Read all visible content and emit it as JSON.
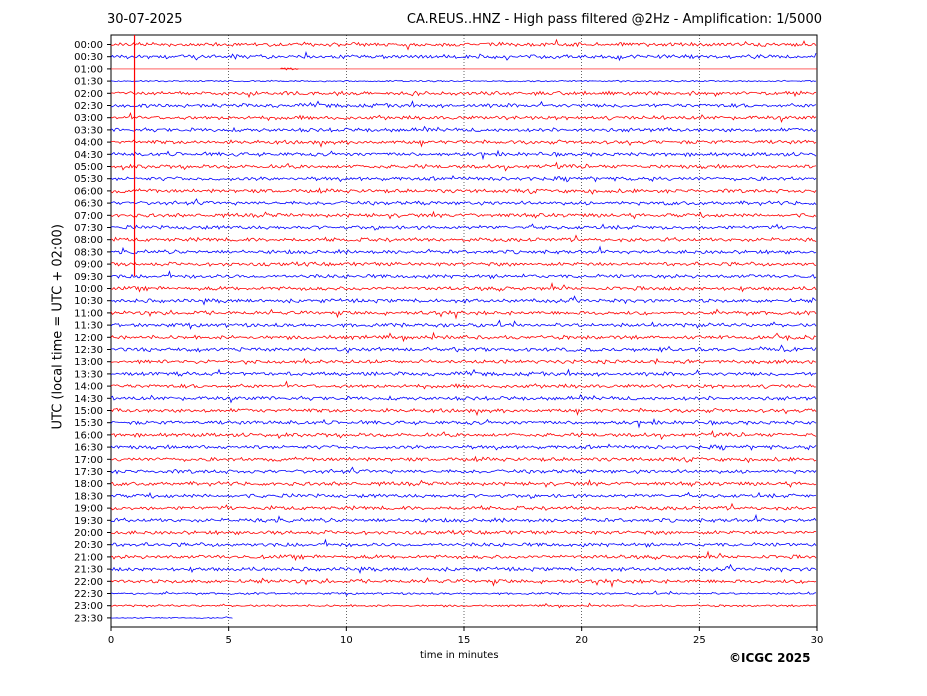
{
  "header": {
    "date": "30-07-2025",
    "title": "CA.REUS..HNZ - High pass filtered @2Hz - Amplification: 1/5000"
  },
  "copyright": "©ICGC 2025",
  "chart_data": {
    "type": "line",
    "title": "CA.REUS..HNZ - High pass filtered @2Hz - Amplification: 1/5000",
    "xlabel": "time in minutes",
    "ylabel": "UTC (local time = UTC + 02:00)",
    "xlim": [
      0,
      30
    ],
    "x_ticks": [
      "0",
      "5",
      "10",
      "15",
      "20",
      "25",
      "30"
    ],
    "rows": [
      "00:00",
      "00:30",
      "01:00",
      "01:30",
      "02:00",
      "02:30",
      "03:00",
      "03:30",
      "04:00",
      "04:30",
      "05:00",
      "05:30",
      "06:00",
      "06:30",
      "07:00",
      "07:30",
      "08:00",
      "08:30",
      "09:00",
      "09:30",
      "10:00",
      "10:30",
      "11:00",
      "11:30",
      "12:00",
      "12:30",
      "13:00",
      "13:30",
      "14:00",
      "14:30",
      "15:00",
      "15:30",
      "16:00",
      "16:30",
      "17:00",
      "17:30",
      "18:00",
      "18:30",
      "19:00",
      "19:30",
      "20:00",
      "20:30",
      "21:00",
      "21:30",
      "22:00",
      "22:30",
      "23:00",
      "23:30"
    ],
    "trace_colors": [
      "#ff0000",
      "#0000ff"
    ],
    "grid": "x-dotted",
    "marker_line_minute": 1.0
  }
}
